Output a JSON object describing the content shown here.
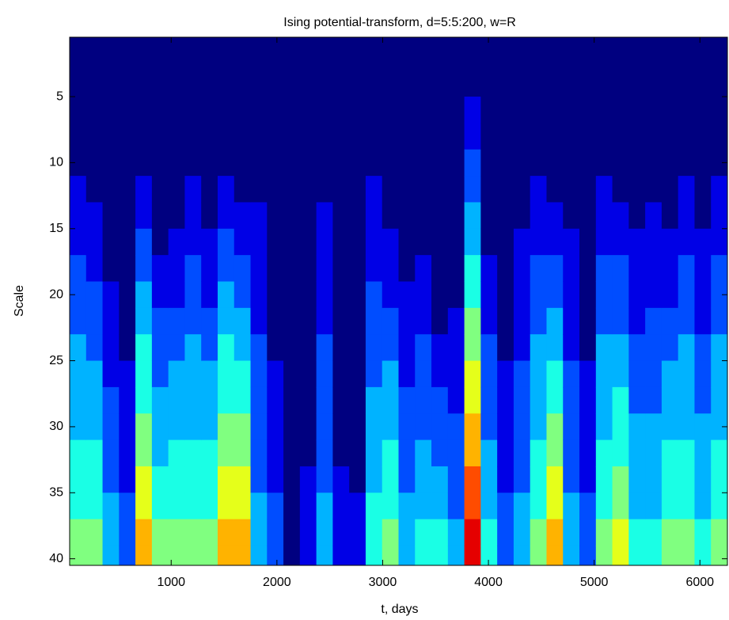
{
  "chart_data": {
    "type": "heatmap",
    "title": "Ising potential-transform, d=5:5:200, w=R",
    "x_label": "t, days",
    "y_label": "Scale",
    "colormap": "jet",
    "clim": [
      0,
      10
    ],
    "xlim": [
      40,
      6260
    ],
    "ylim": [
      0.5,
      40.5
    ],
    "y_reversed": true,
    "xticks": [
      1000,
      2000,
      3000,
      4000,
      5000,
      6000
    ],
    "yticks": [
      5,
      10,
      15,
      20,
      25,
      30,
      35,
      40
    ],
    "x": [
      118,
      273,
      429,
      584,
      740,
      895,
      1051,
      1206,
      1362,
      1517,
      1673,
      1828,
      1984,
      2139,
      2295,
      2450,
      2606,
      2761,
      2917,
      3072,
      3228,
      3383,
      3539,
      3694,
      3850,
      4005,
      4161,
      4316,
      4472,
      4627,
      4783,
      4938,
      5094,
      5249,
      5405,
      5560,
      5716,
      5871,
      6027,
      6182
    ],
    "y": [
      2,
      4,
      6,
      8,
      10,
      12,
      14,
      16,
      18,
      20,
      22,
      24,
      26,
      28,
      30,
      32,
      34,
      36,
      38,
      40
    ],
    "z": [
      [
        0,
        0,
        0,
        0,
        0,
        1,
        1,
        1,
        2,
        2,
        2,
        3,
        3,
        3,
        3,
        4,
        4,
        4,
        5,
        5
      ],
      [
        0,
        0,
        0,
        0,
        0,
        0,
        1,
        1,
        1,
        2,
        2,
        2,
        3,
        3,
        3,
        4,
        4,
        4,
        5,
        5
      ],
      [
        0,
        0,
        0,
        0,
        0,
        0,
        0,
        0,
        0,
        1,
        1,
        1,
        1,
        2,
        2,
        2,
        2,
        3,
        3,
        3
      ],
      [
        0,
        0,
        0,
        0,
        0,
        0,
        0,
        0,
        0,
        0,
        0,
        0,
        1,
        1,
        1,
        1,
        1,
        2,
        2,
        2
      ],
      [
        0,
        0,
        0,
        0,
        0,
        1,
        1,
        2,
        2,
        3,
        3,
        4,
        4,
        4,
        5,
        5,
        6,
        6,
        7,
        7
      ],
      [
        0,
        0,
        0,
        0,
        0,
        0,
        0,
        0,
        1,
        1,
        2,
        2,
        2,
        3,
        3,
        3,
        4,
        4,
        5,
        5
      ],
      [
        0,
        0,
        0,
        0,
        0,
        0,
        0,
        1,
        1,
        1,
        2,
        2,
        3,
        3,
        3,
        4,
        4,
        4,
        5,
        5
      ],
      [
        0,
        0,
        0,
        0,
        0,
        1,
        1,
        1,
        2,
        2,
        2,
        3,
        3,
        3,
        3,
        4,
        4,
        4,
        5,
        5
      ],
      [
        0,
        0,
        0,
        0,
        0,
        0,
        0,
        1,
        1,
        1,
        2,
        2,
        3,
        3,
        3,
        4,
        4,
        4,
        5,
        5
      ],
      [
        0,
        0,
        0,
        0,
        0,
        1,
        1,
        2,
        2,
        3,
        3,
        4,
        4,
        4,
        5,
        5,
        6,
        6,
        7,
        7
      ],
      [
        0,
        0,
        0,
        0,
        0,
        0,
        1,
        1,
        2,
        2,
        3,
        3,
        4,
        4,
        5,
        5,
        6,
        6,
        7,
        7
      ],
      [
        0,
        0,
        0,
        0,
        0,
        0,
        1,
        1,
        1,
        1,
        1,
        2,
        2,
        2,
        2,
        2,
        2,
        3,
        3,
        3
      ],
      [
        0,
        0,
        0,
        0,
        0,
        0,
        0,
        0,
        0,
        0,
        0,
        0,
        1,
        1,
        1,
        1,
        1,
        2,
        2,
        2
      ],
      [
        0,
        0,
        0,
        0,
        0,
        0,
        0,
        0,
        0,
        0,
        0,
        0,
        0,
        0,
        0,
        0,
        0,
        0,
        0,
        0
      ],
      [
        0,
        0,
        0,
        0,
        0,
        0,
        0,
        0,
        0,
        0,
        0,
        0,
        0,
        0,
        0,
        0,
        1,
        1,
        1,
        1
      ],
      [
        0,
        0,
        0,
        0,
        0,
        0,
        1,
        1,
        1,
        1,
        1,
        2,
        2,
        2,
        2,
        2,
        2,
        3,
        3,
        3
      ],
      [
        0,
        0,
        0,
        0,
        0,
        0,
        0,
        0,
        0,
        0,
        0,
        0,
        0,
        0,
        0,
        0,
        1,
        1,
        1,
        1
      ],
      [
        0,
        0,
        0,
        0,
        0,
        0,
        0,
        0,
        0,
        0,
        0,
        0,
        0,
        0,
        0,
        0,
        0,
        1,
        1,
        1
      ],
      [
        0,
        0,
        0,
        0,
        0,
        1,
        1,
        1,
        1,
        2,
        2,
        2,
        2,
        3,
        3,
        3,
        3,
        4,
        4,
        4
      ],
      [
        0,
        0,
        0,
        0,
        0,
        0,
        0,
        1,
        1,
        1,
        2,
        2,
        3,
        3,
        3,
        4,
        4,
        4,
        5,
        5
      ],
      [
        0,
        0,
        0,
        0,
        0,
        0,
        0,
        0,
        0,
        1,
        1,
        1,
        1,
        2,
        2,
        2,
        2,
        3,
        3,
        3
      ],
      [
        0,
        0,
        0,
        0,
        0,
        0,
        0,
        0,
        1,
        1,
        1,
        2,
        2,
        2,
        2,
        3,
        3,
        3,
        4,
        4
      ],
      [
        0,
        0,
        0,
        0,
        0,
        0,
        0,
        0,
        0,
        0,
        0,
        1,
        1,
        2,
        2,
        2,
        3,
        3,
        4,
        4
      ],
      [
        0,
        0,
        0,
        0,
        0,
        0,
        0,
        0,
        0,
        0,
        1,
        1,
        1,
        1,
        2,
        2,
        2,
        2,
        3,
        3
      ],
      [
        0,
        0,
        1,
        1,
        2,
        2,
        3,
        3,
        4,
        4,
        5,
        5,
        6,
        6,
        7,
        7,
        8,
        8,
        9,
        9
      ],
      [
        0,
        0,
        0,
        0,
        0,
        0,
        0,
        0,
        1,
        1,
        1,
        2,
        2,
        2,
        2,
        3,
        3,
        3,
        4,
        4
      ],
      [
        0,
        0,
        0,
        0,
        0,
        0,
        0,
        0,
        0,
        0,
        0,
        0,
        1,
        1,
        1,
        1,
        1,
        2,
        2,
        2
      ],
      [
        0,
        0,
        0,
        0,
        0,
        0,
        0,
        1,
        1,
        1,
        1,
        1,
        2,
        2,
        2,
        2,
        2,
        3,
        3,
        3
      ],
      [
        0,
        0,
        0,
        0,
        0,
        1,
        1,
        1,
        2,
        2,
        2,
        3,
        3,
        3,
        3,
        4,
        4,
        4,
        5,
        5
      ],
      [
        0,
        0,
        0,
        0,
        0,
        0,
        1,
        1,
        2,
        2,
        3,
        3,
        4,
        4,
        5,
        5,
        6,
        6,
        7,
        7
      ],
      [
        0,
        0,
        0,
        0,
        0,
        0,
        0,
        1,
        1,
        1,
        1,
        1,
        2,
        2,
        2,
        2,
        2,
        3,
        3,
        3
      ],
      [
        0,
        0,
        0,
        0,
        0,
        0,
        0,
        0,
        0,
        0,
        0,
        0,
        1,
        1,
        1,
        1,
        1,
        2,
        2,
        2
      ],
      [
        0,
        0,
        0,
        0,
        0,
        1,
        1,
        1,
        2,
        2,
        2,
        3,
        3,
        3,
        3,
        4,
        4,
        4,
        5,
        5
      ],
      [
        0,
        0,
        0,
        0,
        0,
        0,
        1,
        1,
        2,
        2,
        2,
        3,
        3,
        4,
        4,
        4,
        5,
        5,
        6,
        6
      ],
      [
        0,
        0,
        0,
        0,
        0,
        0,
        0,
        1,
        1,
        1,
        1,
        2,
        2,
        2,
        3,
        3,
        3,
        3,
        4,
        4
      ],
      [
        0,
        0,
        0,
        0,
        0,
        0,
        1,
        1,
        1,
        1,
        2,
        2,
        2,
        2,
        3,
        3,
        3,
        3,
        4,
        4
      ],
      [
        0,
        0,
        0,
        0,
        0,
        0,
        0,
        1,
        1,
        1,
        2,
        2,
        3,
        3,
        3,
        4,
        4,
        4,
        5,
        5
      ],
      [
        0,
        0,
        0,
        0,
        0,
        1,
        1,
        1,
        2,
        2,
        2,
        3,
        3,
        3,
        3,
        4,
        4,
        4,
        5,
        5
      ],
      [
        0,
        0,
        0,
        0,
        0,
        0,
        0,
        1,
        1,
        1,
        1,
        2,
        2,
        2,
        3,
        3,
        3,
        3,
        4,
        4
      ],
      [
        0,
        0,
        0,
        0,
        0,
        1,
        1,
        1,
        2,
        2,
        2,
        3,
        3,
        3,
        3,
        4,
        4,
        4,
        5,
        5
      ]
    ]
  }
}
